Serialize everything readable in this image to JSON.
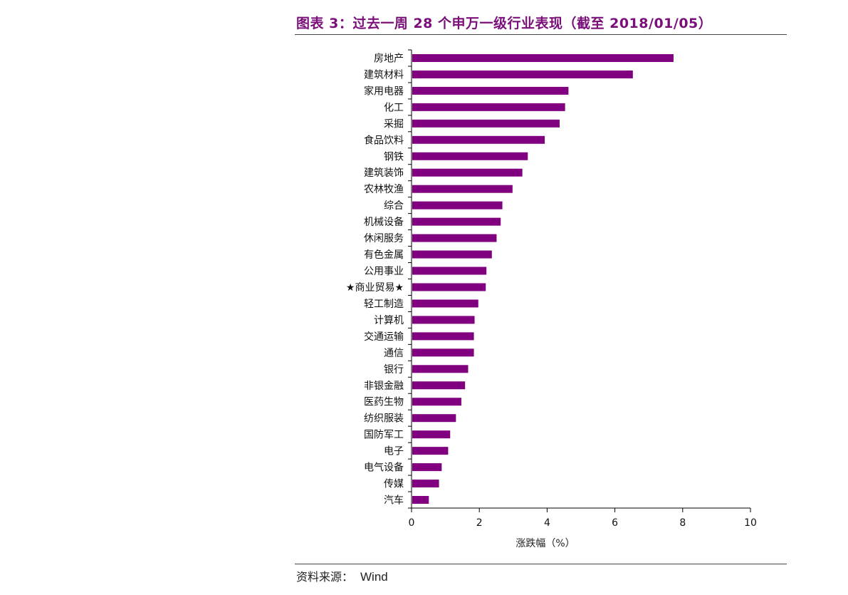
{
  "header": {
    "title": "图表 3：过去一周 28 个申万一级行业表现（截至 2018/01/05）"
  },
  "footer": {
    "source_label": "资料来源：",
    "source_value": "Wind"
  },
  "colors": {
    "bar": "#800080",
    "title": "#7a0f7a",
    "axis": "#000000"
  },
  "chart_data": {
    "type": "bar",
    "orientation": "horizontal",
    "title": "",
    "xlabel": "涨跌幅（%）",
    "ylabel": "",
    "xlim": [
      0,
      10
    ],
    "xticks": [
      0,
      2,
      4,
      6,
      8,
      10
    ],
    "grid": false,
    "legend": "none",
    "categories": [
      "房地产",
      "建筑材料",
      "家用电器",
      "化工",
      "采掘",
      "食品饮料",
      "钢铁",
      "建筑装饰",
      "农林牧渔",
      "综合",
      "机械设备",
      "休闲服务",
      "有色金属",
      "公用事业",
      "★商业贸易★",
      "轻工制造",
      "计算机",
      "交通运输",
      "通信",
      "银行",
      "非银金融",
      "医药生物",
      "纺织服装",
      "国防军工",
      "电子",
      "电气设备",
      "传媒",
      "汽车"
    ],
    "values": [
      7.73,
      6.53,
      4.63,
      4.53,
      4.37,
      3.93,
      3.43,
      3.27,
      2.98,
      2.68,
      2.63,
      2.51,
      2.37,
      2.21,
      2.19,
      1.97,
      1.86,
      1.84,
      1.84,
      1.67,
      1.58,
      1.47,
      1.31,
      1.14,
      1.08,
      0.89,
      0.81,
      0.51
    ]
  }
}
